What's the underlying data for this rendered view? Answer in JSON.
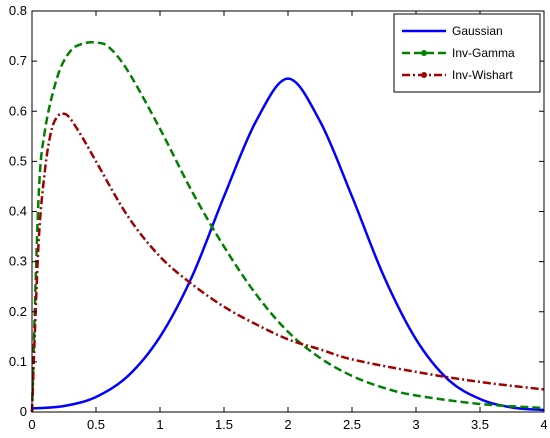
{
  "chart_data": {
    "type": "line",
    "title": "",
    "xlabel": "",
    "ylabel": "",
    "xlim": [
      0,
      4
    ],
    "ylim": [
      0,
      0.8
    ],
    "x_ticks": [
      0,
      0.5,
      1,
      1.5,
      2,
      2.5,
      3,
      3.5,
      4
    ],
    "y_ticks": [
      0,
      0.1,
      0.2,
      0.3,
      0.4,
      0.5,
      0.6,
      0.7,
      0.8
    ],
    "x_tick_labels": [
      "0",
      "0.5",
      "1",
      "1.5",
      "2",
      "2.5",
      "3",
      "3.5",
      "4"
    ],
    "y_tick_labels": [
      "0",
      "0.1",
      "0.2",
      "0.3",
      "0.4",
      "0.5",
      "0.6",
      "0.7",
      "0.8"
    ],
    "grid": false,
    "legend_position": "top-right",
    "series": [
      {
        "name": "Gaussian",
        "color": "#0000ff",
        "line_style": "solid",
        "marker": "none",
        "x": [
          0,
          0.25,
          0.5,
          0.75,
          1.0,
          1.25,
          1.5,
          1.75,
          2.0,
          2.25,
          2.5,
          2.75,
          3.0,
          3.25,
          3.5,
          3.75,
          4.0
        ],
        "y": [
          0.007,
          0.012,
          0.03,
          0.072,
          0.15,
          0.27,
          0.43,
          0.58,
          0.665,
          0.58,
          0.43,
          0.27,
          0.145,
          0.065,
          0.026,
          0.009,
          0.004
        ]
      },
      {
        "name": "Inv-Gamma",
        "color": "#008000",
        "line_style": "dashed",
        "marker": "circle",
        "x": [
          0,
          0.05,
          0.1,
          0.2,
          0.3,
          0.4,
          0.5,
          0.6,
          0.75,
          1.0,
          1.25,
          1.5,
          1.75,
          2.0,
          2.25,
          2.5,
          2.75,
          3.0,
          3.5,
          4.0
        ],
        "y": [
          0.0,
          0.42,
          0.56,
          0.67,
          0.72,
          0.735,
          0.737,
          0.728,
          0.68,
          0.565,
          0.44,
          0.33,
          0.235,
          0.16,
          0.108,
          0.072,
          0.048,
          0.033,
          0.016,
          0.008
        ]
      },
      {
        "name": "Inv-Wishart",
        "color": "#a00000",
        "line_style": "dashdot",
        "marker": "circle",
        "x": [
          0,
          0.05,
          0.1,
          0.15,
          0.2,
          0.25,
          0.3,
          0.4,
          0.5,
          0.75,
          1.0,
          1.25,
          1.5,
          1.75,
          2.0,
          2.25,
          2.5,
          3.0,
          3.5,
          4.0
        ],
        "y": [
          0.0,
          0.33,
          0.48,
          0.56,
          0.59,
          0.595,
          0.585,
          0.545,
          0.5,
          0.39,
          0.31,
          0.255,
          0.21,
          0.175,
          0.145,
          0.125,
          0.105,
          0.08,
          0.06,
          0.045
        ]
      }
    ]
  }
}
